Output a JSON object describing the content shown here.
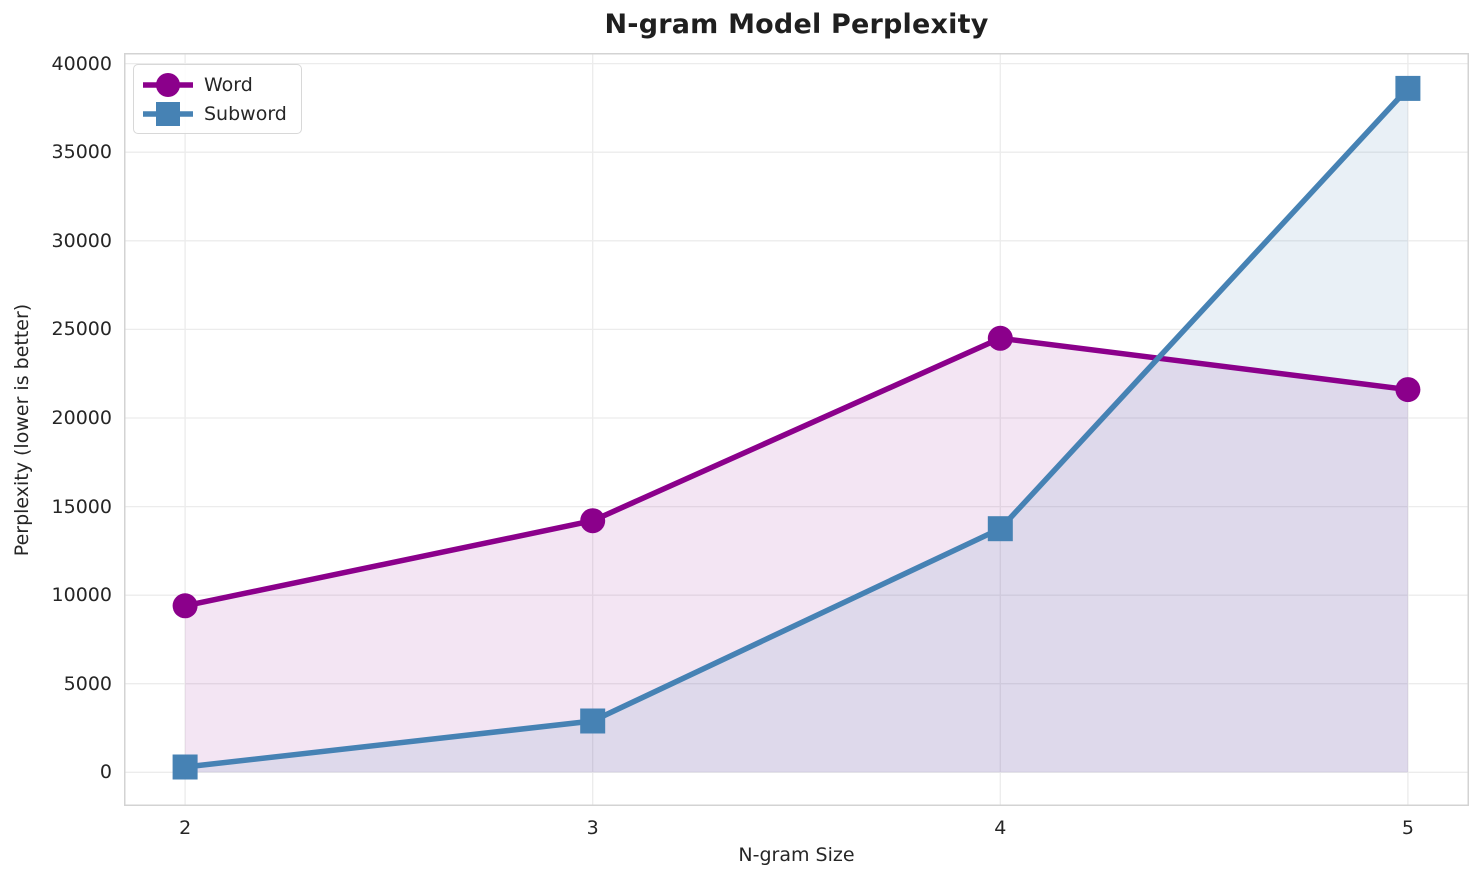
{
  "chart_data": {
    "type": "line",
    "title": "N-gram Model Perplexity",
    "xlabel": "N-gram Size",
    "ylabel": "Perplexity (lower is better)",
    "x": [
      2,
      3,
      4,
      5
    ],
    "xticklabels": [
      "2",
      "3",
      "4",
      "5"
    ],
    "series": [
      {
        "name": "Word",
        "color": "#8B008B",
        "marker": "circle",
        "values": [
          9400,
          14200,
          24500,
          21600
        ],
        "fill_opacity": 0.1
      },
      {
        "name": "Subword",
        "color": "#4682B4",
        "marker": "square",
        "values": [
          300,
          2900,
          13750,
          38600
        ],
        "fill_opacity": 0.12
      }
    ],
    "yticks": [
      0,
      5000,
      10000,
      15000,
      20000,
      25000,
      30000,
      35000,
      40000
    ],
    "xlim": [
      1.85,
      5.15
    ],
    "ylim": [
      -1900,
      40600
    ],
    "grid": true,
    "fill_to_zero": true,
    "legend_position": "upper left"
  },
  "style": {
    "background": "#FFFFFF",
    "grid_color": "#ECECEC",
    "spine_color": "#D3D3D3",
    "text_color": "#262626",
    "title_color": "#1F1F1F",
    "legend_border": "#D8D8D8"
  }
}
